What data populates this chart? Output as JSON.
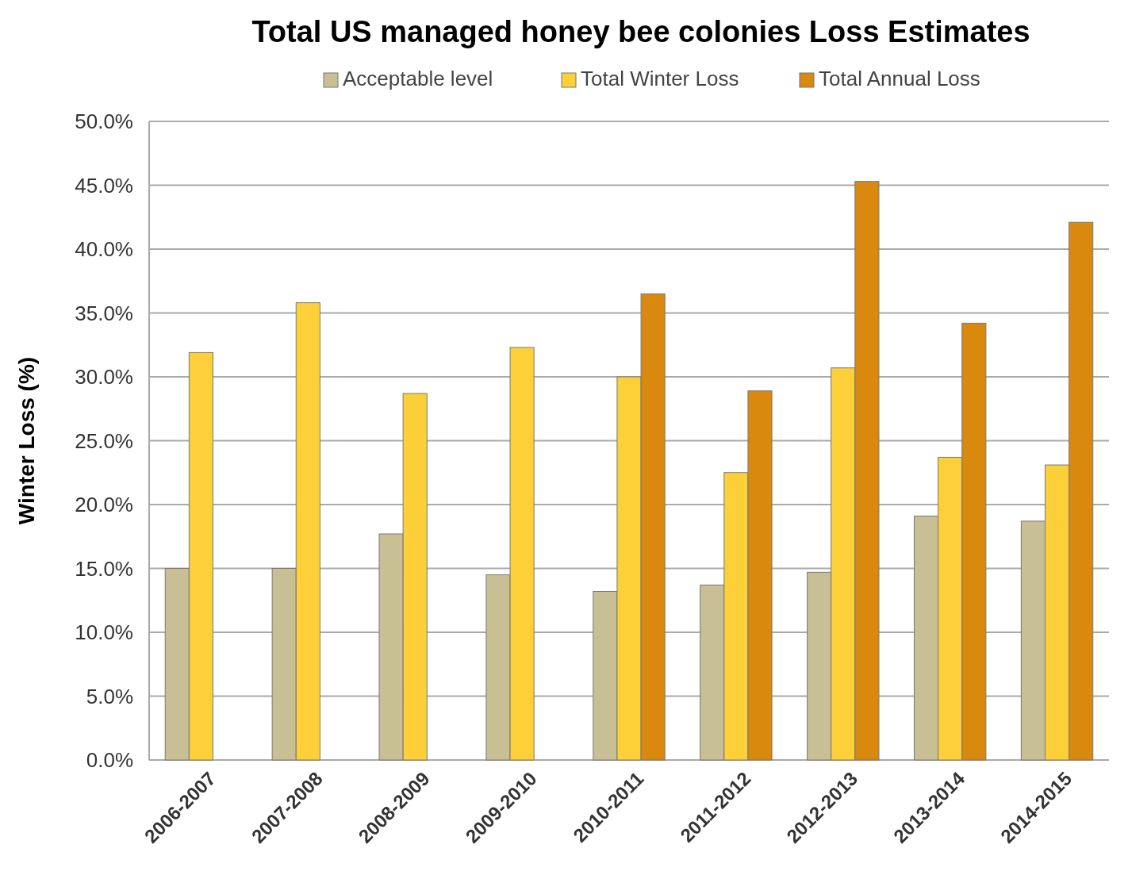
{
  "chart_data": {
    "type": "bar",
    "title": "Total US managed honey bee colonies Loss Estimates",
    "ylabel": "Winter Loss (%)",
    "categories": [
      "2006-2007",
      "2007-2008",
      "2008-2009",
      "2009-2010",
      "2010-2011",
      "2011-2012",
      "2012-2013",
      "2013-2014",
      "2014-2015"
    ],
    "series": [
      {
        "name": "Acceptable level",
        "color": "#c8bf94",
        "values": [
          15.0,
          15.0,
          17.7,
          14.5,
          13.2,
          13.7,
          14.7,
          19.1,
          18.7
        ]
      },
      {
        "name": "Total Winter Loss",
        "color": "#fdd03a",
        "values": [
          31.9,
          35.8,
          28.7,
          32.3,
          30.0,
          22.5,
          30.7,
          23.7,
          23.1
        ]
      },
      {
        "name": "Total Annual Loss",
        "color": "#d98a0e",
        "values": [
          null,
          null,
          null,
          null,
          36.5,
          28.9,
          45.3,
          34.2,
          42.1
        ]
      }
    ],
    "ylim": [
      0,
      50
    ],
    "yticks": [
      {
        "value": 0,
        "label": "0.0%"
      },
      {
        "value": 5,
        "label": "5.0%"
      },
      {
        "value": 10,
        "label": "10.0%"
      },
      {
        "value": 15,
        "label": "15.0%"
      },
      {
        "value": 20,
        "label": "20.0%"
      },
      {
        "value": 25,
        "label": "25.0%"
      },
      {
        "value": 30,
        "label": "30.0%"
      },
      {
        "value": 35,
        "label": "35.0%"
      },
      {
        "value": 40,
        "label": "40.0%"
      },
      {
        "value": 45,
        "label": "45.0%"
      },
      {
        "value": 50,
        "label": "50.0%"
      }
    ],
    "grid": "y",
    "legend": "top"
  }
}
